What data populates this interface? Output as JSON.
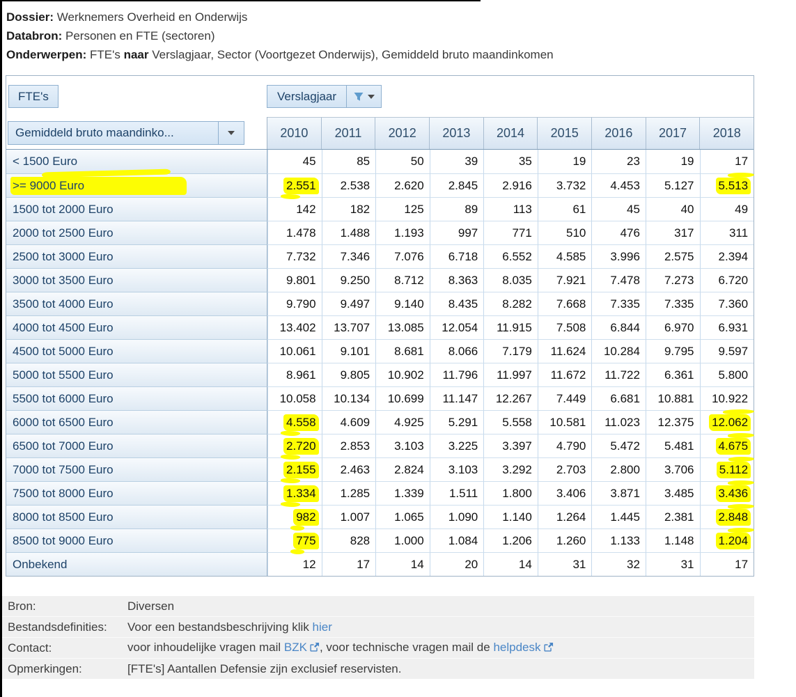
{
  "meta": {
    "dossier_label": "Dossier:",
    "dossier_value": " Werknemers Overheid en Onderwijs",
    "databron_label": "Databron:",
    "databron_value": " Personen en FTE (sectoren)",
    "onderwerpen_label": "Onderwerpen:",
    "onderwerpen_pre": " FTE's ",
    "onderwerpen_naar": "naar",
    "onderwerpen_post": " Verslagjaar, Sector (Voortgezet Onderwijs), Gemiddeld bruto maandinkomen"
  },
  "toolbar": {
    "measure_label": "FTE's",
    "column_dimension_label": "Verslagjaar",
    "row_dimension_label": "Gemiddeld bruto maandinko..."
  },
  "table": {
    "years": [
      "2010",
      "2011",
      "2012",
      "2013",
      "2014",
      "2015",
      "2016",
      "2017",
      "2018"
    ],
    "rows": [
      {
        "label": "< 1500 Euro",
        "values": [
          "45",
          "85",
          "50",
          "39",
          "35",
          "19",
          "23",
          "19",
          "17"
        ],
        "hl": [],
        "hl_label": false
      },
      {
        "label": ">= 9000 Euro",
        "values": [
          "2.551",
          "2.538",
          "2.620",
          "2.845",
          "2.916",
          "3.732",
          "4.453",
          "5.127",
          "5.513"
        ],
        "hl": [
          0,
          8
        ],
        "hl_label": true
      },
      {
        "label": "1500 tot 2000 Euro",
        "values": [
          "142",
          "182",
          "125",
          "89",
          "113",
          "61",
          "45",
          "40",
          "49"
        ],
        "hl": [],
        "hl_label": false
      },
      {
        "label": "2000 tot 2500 Euro",
        "values": [
          "1.478",
          "1.488",
          "1.193",
          "997",
          "771",
          "510",
          "476",
          "317",
          "311"
        ],
        "hl": [],
        "hl_label": false
      },
      {
        "label": "2500 tot 3000 Euro",
        "values": [
          "7.732",
          "7.346",
          "7.076",
          "6.718",
          "6.552",
          "4.585",
          "3.996",
          "2.575",
          "2.394"
        ],
        "hl": [],
        "hl_label": false
      },
      {
        "label": "3000 tot 3500 Euro",
        "values": [
          "9.801",
          "9.250",
          "8.712",
          "8.363",
          "8.035",
          "7.921",
          "7.478",
          "7.273",
          "6.720"
        ],
        "hl": [],
        "hl_label": false
      },
      {
        "label": "3500 tot 4000 Euro",
        "values": [
          "9.790",
          "9.497",
          "9.140",
          "8.435",
          "8.282",
          "7.668",
          "7.335",
          "7.335",
          "7.360"
        ],
        "hl": [],
        "hl_label": false
      },
      {
        "label": "4000 tot 4500 Euro",
        "values": [
          "13.402",
          "13.707",
          "13.085",
          "12.054",
          "11.915",
          "7.508",
          "6.844",
          "6.970",
          "6.931"
        ],
        "hl": [],
        "hl_label": false
      },
      {
        "label": "4500 tot 5000 Euro",
        "values": [
          "10.061",
          "9.101",
          "8.681",
          "8.066",
          "7.179",
          "11.624",
          "10.284",
          "9.795",
          "9.597"
        ],
        "hl": [],
        "hl_label": false
      },
      {
        "label": "5000 tot 5500 Euro",
        "values": [
          "8.961",
          "9.805",
          "10.902",
          "11.796",
          "11.997",
          "11.672",
          "11.722",
          "6.361",
          "5.800"
        ],
        "hl": [],
        "hl_label": false
      },
      {
        "label": "5500 tot 6000 Euro",
        "values": [
          "10.058",
          "10.134",
          "10.699",
          "11.147",
          "12.267",
          "7.449",
          "6.681",
          "10.881",
          "10.922"
        ],
        "hl": [],
        "hl_label": false
      },
      {
        "label": "6000 tot 6500 Euro",
        "values": [
          "4.558",
          "4.609",
          "4.925",
          "5.291",
          "5.558",
          "10.581",
          "11.023",
          "12.375",
          "12.062"
        ],
        "hl": [
          0,
          8
        ],
        "hl_label": false
      },
      {
        "label": "6500 tot 7000 Euro",
        "values": [
          "2.720",
          "2.853",
          "3.103",
          "3.225",
          "3.397",
          "4.790",
          "5.472",
          "5.481",
          "4.675"
        ],
        "hl": [
          0,
          8
        ],
        "hl_label": false
      },
      {
        "label": "7000 tot 7500 Euro",
        "values": [
          "2.155",
          "2.463",
          "2.824",
          "3.103",
          "3.292",
          "2.703",
          "2.800",
          "3.706",
          "5.112"
        ],
        "hl": [
          0,
          8
        ],
        "hl_label": false
      },
      {
        "label": "7500 tot 8000 Euro",
        "values": [
          "1.334",
          "1.285",
          "1.339",
          "1.511",
          "1.800",
          "3.406",
          "3.871",
          "3.485",
          "3.436"
        ],
        "hl": [
          0,
          8
        ],
        "hl_label": false
      },
      {
        "label": "8000 tot 8500 Euro",
        "values": [
          "982",
          "1.007",
          "1.065",
          "1.090",
          "1.140",
          "1.264",
          "1.445",
          "2.381",
          "2.848"
        ],
        "hl": [
          0,
          8
        ],
        "hl_label": false
      },
      {
        "label": "8500 tot 9000 Euro",
        "values": [
          "775",
          "828",
          "1.000",
          "1.084",
          "1.206",
          "1.260",
          "1.133",
          "1.148",
          "1.204"
        ],
        "hl": [
          0,
          8
        ],
        "hl_label": false
      },
      {
        "label": "Onbekend",
        "values": [
          "12",
          "17",
          "14",
          "20",
          "14",
          "31",
          "32",
          "31",
          "17"
        ],
        "hl": [],
        "hl_label": false
      }
    ]
  },
  "footer": {
    "bron_label": "Bron:",
    "bron_value": "Diversen",
    "bestand_label": "Bestandsdefinities:",
    "bestand_text": "Voor een bestandsbeschrijving klik ",
    "bestand_link": "hier",
    "contact_label": "Contact:",
    "contact_pre": "voor inhoudelijke vragen mail ",
    "contact_link1": "BZK",
    "contact_mid": ", voor technische vragen mail de ",
    "contact_link2": "helpdesk",
    "opmerkingen_label": "Opmerkingen:",
    "opmerkingen_value": "[FTE's] Aantallen Defensie zijn exclusief reservisten."
  },
  "colors": {
    "highlight_marker": "#fdfd03",
    "link": "#4a86c6",
    "header_text": "#1d4268",
    "year_header_text": "#2e4d6b",
    "button_bg": "#dceaf7",
    "button_border": "#8fb0cf",
    "grid_border": "#c5d9ec",
    "footer_bg": "#f0f0f0",
    "filter_icon": "#5f9ccd"
  }
}
